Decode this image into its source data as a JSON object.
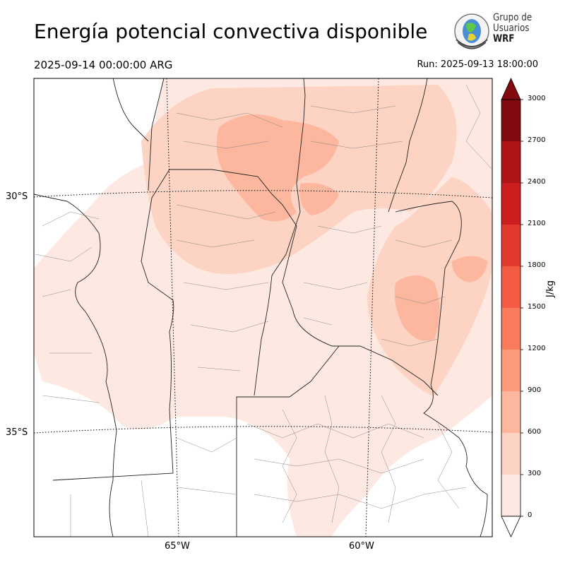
{
  "header": {
    "title": "Energía potencial convectiva disponible",
    "valid_time": "2025-09-14 00:00:00 ARG",
    "run_time": "Run: 2025-09-13 18:00:00"
  },
  "logo": {
    "line1": "Grupo de",
    "line2": "Usuarios",
    "line3": "WRF"
  },
  "axes": {
    "lat_labels": [
      "30°S",
      "35°S"
    ],
    "lon_labels": [
      "65°W",
      "60°W"
    ]
  },
  "colorbar": {
    "unit": "J/kg",
    "ticks": [
      "0",
      "300",
      "600",
      "900",
      "1200",
      "1500",
      "1800",
      "2100",
      "2400",
      "2700",
      "3000"
    ],
    "levels": [
      0,
      300,
      600,
      900,
      1200,
      1500,
      1800,
      2100,
      2400,
      2700,
      3000
    ],
    "colors": [
      "#fee9e2",
      "#fdd3c4",
      "#fcb79e",
      "#fc9a7b",
      "#f97b5e",
      "#f25a42",
      "#e23a2e",
      "#cd1f1f",
      "#ad1517",
      "#800a10"
    ],
    "extend": "both"
  }
}
